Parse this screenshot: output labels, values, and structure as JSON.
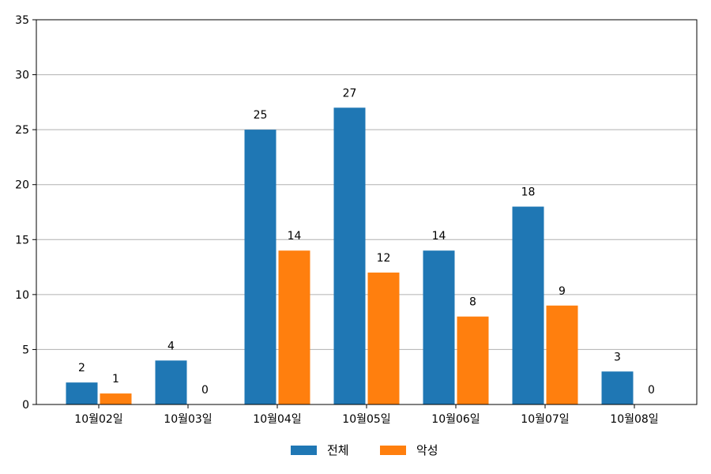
{
  "chart_data": {
    "type": "bar",
    "categories": [
      "10월02일",
      "10월03일",
      "10월04일",
      "10월05일",
      "10월06일",
      "10월07일",
      "10월08일"
    ],
    "series": [
      {
        "name": "전체",
        "values": [
          2,
          4,
          25,
          27,
          14,
          18,
          3
        ],
        "color": "#1f77b4"
      },
      {
        "name": "악성",
        "values": [
          1,
          0,
          14,
          12,
          8,
          9,
          0
        ],
        "color": "#ff7f0e"
      }
    ],
    "ylim": [
      0,
      35
    ],
    "yticks": [
      0,
      5,
      10,
      15,
      20,
      25,
      30,
      35
    ],
    "grid": "horizontal",
    "legend": "bottom-center",
    "show_data_labels": true
  }
}
